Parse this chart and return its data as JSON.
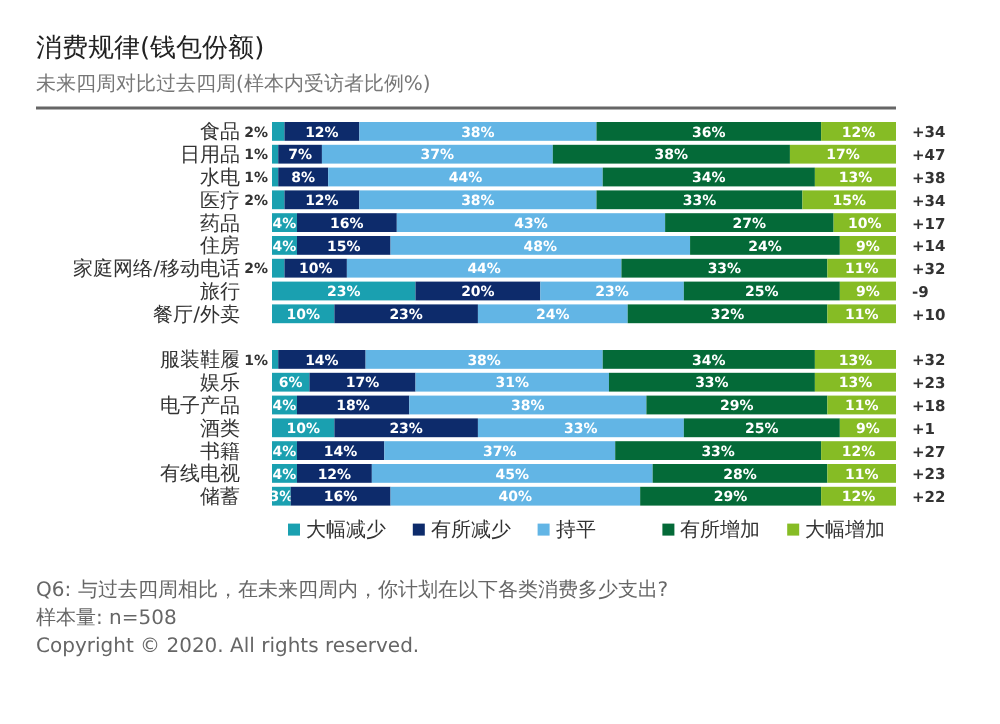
{
  "chart_data": {
    "type": "bar",
    "orientation": "horizontal",
    "stacked": true,
    "title": "消费规律(钱包份额)",
    "subtitle": "未来四周对比过去四周(样本内受访者比例%)",
    "categories": [
      "食品",
      "日用品",
      "水电",
      "医疗",
      "药品",
      "住房",
      "家庭网络/移动电话",
      "旅行",
      "餐厅/外卖",
      null,
      "服装鞋履",
      "娱乐",
      "电子产品",
      "酒类",
      "书籍",
      "有线电视",
      "储蓄"
    ],
    "series": [
      {
        "name": "大幅减少",
        "color": "#1aa0b0",
        "values": [
          2,
          1,
          1,
          2,
          4,
          4,
          2,
          23,
          10,
          null,
          1,
          6,
          4,
          10,
          4,
          4,
          3
        ],
        "value_labels": [
          "2%",
          "1%",
          "1%",
          "2%",
          "4%",
          "4%",
          "2%",
          "23%",
          "10%",
          null,
          "1%",
          "6%",
          "4%",
          "10%",
          "4%",
          "4%",
          "3%"
        ]
      },
      {
        "name": "有所减少",
        "color": "#0d2b6b",
        "values": [
          12,
          7,
          8,
          12,
          16,
          15,
          10,
          20,
          23,
          null,
          14,
          17,
          18,
          23,
          14,
          12,
          16
        ],
        "value_labels": [
          "12%",
          "7%",
          "8%",
          "12%",
          "16%",
          "15%",
          "10%",
          "20%",
          "23%",
          null,
          "14%",
          "17%",
          "18%",
          "23%",
          "14%",
          "12%",
          "16%"
        ]
      },
      {
        "name": "持平",
        "color": "#62b5e5",
        "values": [
          38,
          37,
          44,
          38,
          43,
          48,
          44,
          23,
          24,
          null,
          38,
          31,
          38,
          33,
          37,
          45,
          40
        ],
        "value_labels": [
          "38%",
          "37%",
          "44%",
          "38%",
          "43%",
          "48%",
          "44%",
          "23%",
          "24%",
          null,
          "38%",
          "31%",
          "38%",
          "33%",
          "37%",
          "45%",
          "40%"
        ]
      },
      {
        "name": "有所增加",
        "color": "#046a38",
        "values": [
          36,
          38,
          34,
          33,
          27,
          24,
          33,
          25,
          32,
          null,
          34,
          33,
          29,
          25,
          33,
          28,
          29
        ],
        "value_labels": [
          "36%",
          "38%",
          "34%",
          "33%",
          "27%",
          "24%",
          "33%",
          "25%",
          "32%",
          null,
          "34%",
          "33%",
          "29%",
          "25%",
          "33%",
          "28%",
          "29%"
        ]
      },
      {
        "name": "大幅增加",
        "color": "#86bc25",
        "values": [
          12,
          17,
          13,
          15,
          10,
          9,
          11,
          9,
          11,
          null,
          13,
          13,
          11,
          9,
          12,
          11,
          12
        ],
        "value_labels": [
          "12%",
          "17%",
          "13%",
          "15%",
          "10%",
          "9%",
          "11%",
          "9%",
          "11%",
          null,
          "13%",
          "13%",
          "11%",
          "9%",
          "12%",
          "11%",
          "12%"
        ]
      }
    ],
    "legend": "bottom",
    "annotations": [
      "+34",
      "+47",
      "+38",
      "+34",
      "+17",
      "+14",
      "+32",
      "-9",
      "+10",
      "+32",
      "+23",
      "+18",
      "+1",
      "+27",
      "+23",
      "+22",
      "Q6: 与过去四周相比，在未来四周内，你计划在以下各类消费多少支出?",
      "样本量: n=508",
      "Copyright © 2020. All rights reserved."
    ]
  }
}
